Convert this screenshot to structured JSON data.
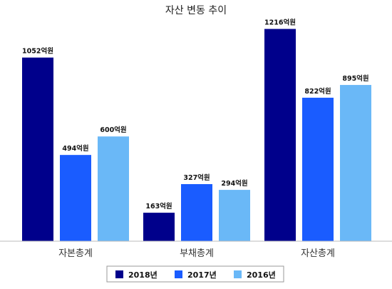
{
  "chart_data": {
    "type": "bar",
    "title": "자산 변동 추이",
    "categories": [
      "자본총계",
      "부채총계",
      "자산총계"
    ],
    "series": [
      {
        "name": "2018년",
        "color": "#00008b",
        "values": [
          1052,
          163,
          1216
        ],
        "labels": [
          "1052억원",
          "163억원",
          "1216억원"
        ]
      },
      {
        "name": "2017년",
        "color": "#1a5cff",
        "values": [
          494,
          327,
          822
        ],
        "labels": [
          "494억원",
          "327억원",
          "822억원"
        ]
      },
      {
        "name": "2016년",
        "color": "#6ab8f7",
        "values": [
          600,
          294,
          895
        ],
        "labels": [
          "600억원",
          "294억원",
          "895억원"
        ]
      }
    ],
    "ylim": [
      0,
      1300
    ],
    "grid": false,
    "legend_position": "bottom"
  }
}
